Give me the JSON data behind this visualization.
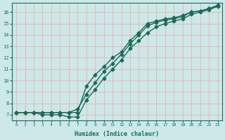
{
  "xlabel": "Humidex (Indice chaleur)",
  "ylabel": "",
  "background_color": "#cce8e8",
  "grid_color": "#e8b8b8",
  "line_color": "#1a6b5a",
  "xlim": [
    -0.5,
    23.5
  ],
  "ylim": [
    6.5,
    16.8
  ],
  "xticks": [
    0,
    1,
    2,
    3,
    4,
    5,
    6,
    7,
    8,
    9,
    10,
    11,
    12,
    13,
    14,
    15,
    16,
    17,
    18,
    19,
    20,
    21,
    22,
    23
  ],
  "yticks": [
    7,
    8,
    9,
    10,
    11,
    12,
    13,
    14,
    15,
    16
  ],
  "series": {
    "line1": {
      "x": [
        0,
        1,
        2,
        3,
        4,
        5,
        6,
        7,
        8,
        9,
        10,
        11,
        12,
        13,
        14,
        15,
        16,
        17,
        18,
        19,
        20,
        21,
        22,
        23
      ],
      "y": [
        7.2,
        7.2,
        7.2,
        7.0,
        7.0,
        7.0,
        6.8,
        6.8,
        8.3,
        9.2,
        10.2,
        11.0,
        11.8,
        12.8,
        13.5,
        14.2,
        14.7,
        15.0,
        15.2,
        15.4,
        15.8,
        16.0,
        16.2,
        16.5
      ]
    },
    "line2": {
      "x": [
        0,
        1,
        2,
        3,
        4,
        5,
        6,
        7,
        8,
        9,
        10,
        11,
        12,
        13,
        14,
        15,
        16,
        17,
        18,
        19,
        20,
        21,
        22,
        23
      ],
      "y": [
        7.2,
        7.2,
        7.2,
        7.2,
        7.2,
        7.2,
        7.2,
        7.5,
        8.8,
        9.8,
        10.8,
        11.5,
        12.3,
        13.2,
        14.0,
        14.8,
        15.1,
        15.3,
        15.4,
        15.6,
        16.0,
        16.1,
        16.3,
        16.5
      ]
    },
    "line3": {
      "x": [
        0,
        1,
        2,
        3,
        4,
        5,
        6,
        7,
        8,
        9,
        10,
        11,
        12,
        13,
        14,
        15,
        16,
        17,
        18,
        19,
        20,
        21,
        22,
        23
      ],
      "y": [
        7.2,
        7.2,
        7.2,
        7.2,
        7.2,
        7.2,
        7.2,
        7.2,
        9.5,
        10.5,
        11.2,
        12.0,
        12.5,
        13.5,
        14.2,
        15.0,
        15.2,
        15.4,
        15.5,
        15.7,
        16.0,
        16.1,
        16.3,
        16.6
      ]
    }
  },
  "marker": "D",
  "markersize": 2.5,
  "linewidth": 1.0
}
